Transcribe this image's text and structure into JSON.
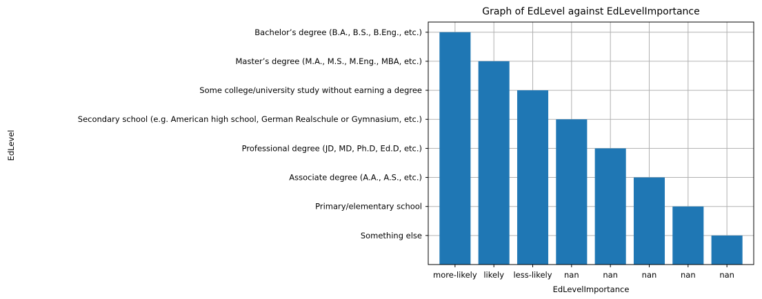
{
  "chart_data": {
    "type": "bar",
    "title": "Graph of EdLevel against EdLevelImportance",
    "xlabel": "EdLevelImportance",
    "ylabel": "EdLevel",
    "x_categories": [
      "more-likely",
      "likely",
      "less-likely",
      "nan",
      "nan",
      "nan",
      "nan",
      "nan"
    ],
    "y_categories": [
      "Bachelor’s degree (B.A., B.S., B.Eng., etc.)",
      "Master’s degree (M.A., M.S., M.Eng., MBA, etc.)",
      "Some college/university study without earning a degree",
      "Secondary school (e.g. American high school, German Realschule or Gymnasium, etc.)",
      "Professional degree (JD, MD, Ph.D, Ed.D, etc.)",
      "Associate degree (A.A., A.S., etc.)",
      "Primary/elementary school",
      "Something else"
    ],
    "bars": [
      {
        "x": "more-likely",
        "y": "Bachelor’s degree (B.A., B.S., B.Eng., etc.)"
      },
      {
        "x": "likely",
        "y": "Master’s degree (M.A., M.S., M.Eng., MBA, etc.)"
      },
      {
        "x": "less-likely",
        "y": "Some college/university study without earning a degree"
      },
      {
        "x": "nan",
        "y": "Secondary school (e.g. American high school, German Realschule or Gymnasium, etc.)"
      },
      {
        "x": "nan",
        "y": "Professional degree (JD, MD, Ph.D, Ed.D, etc.)"
      },
      {
        "x": "nan",
        "y": "Associate degree (A.A., A.S., etc.)"
      },
      {
        "x": "nan",
        "y": "Primary/elementary school"
      },
      {
        "x": "nan",
        "y": "Something else"
      }
    ],
    "grid": true,
    "bar_color": "#1f77b4"
  }
}
